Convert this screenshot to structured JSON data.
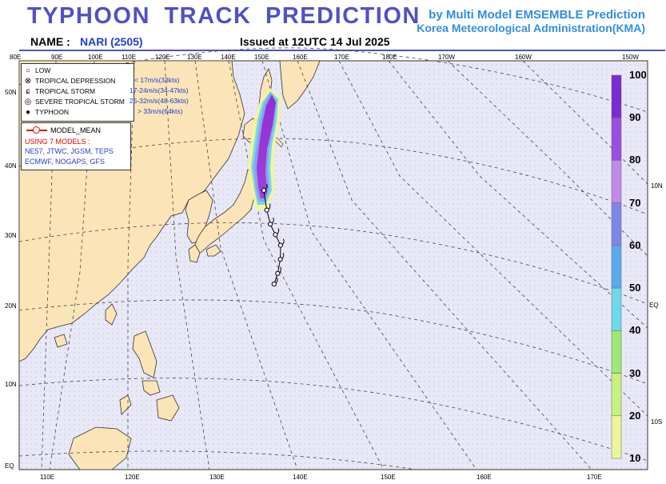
{
  "header": {
    "title": "TYPHOON  TRACK  PREDICTION",
    "byline1": "by Multi Model EMSEMBLE Prediction",
    "byline2": "Korea Meteorological Administration(KMA)",
    "name_label": "NAME :",
    "name_value": "NARI (2505)",
    "issued": "Issued at  12UTC 14 Jul 2025"
  },
  "legend": {
    "items": [
      {
        "label": "LOW",
        "range": "",
        "icon": "low-circle-icon"
      },
      {
        "label": "TROPICAL DEPRESSION",
        "range": "< 17m/s(33kts)",
        "icon": "depression-cross-icon"
      },
      {
        "label": "TROPICAL STORM",
        "range": "17-24m/s(34-47kts)",
        "icon": "storm-hook-icon"
      },
      {
        "label": "SEVERE TROPICAL STORM",
        "range": "25-32m/s(48-63kts)",
        "icon": "severe-storm-icon"
      },
      {
        "label": "TYPHOON",
        "range": "> 33m/s(64kts)",
        "icon": "typhoon-filled-icon"
      }
    ]
  },
  "models_box": {
    "mean_label": "MODEL_MEAN",
    "using": "USING 7 MODELS :",
    "line1": "NE57, JTWC, JGSM, TEPS",
    "line2": "ECMWF, NOGAPS, GFS"
  },
  "colorbar": {
    "labels": [
      "100",
      "90",
      "80",
      "70",
      "60",
      "50",
      "40",
      "30",
      "20",
      "10"
    ],
    "colors": [
      "#7b2bd0",
      "#9a4fe0",
      "#c08ae8",
      "#7f86e6",
      "#5aa9ee",
      "#6fd8ea",
      "#9ee877",
      "#c8f27e",
      "#ecf59a"
    ]
  },
  "axes": {
    "top": [
      "80E",
      "90E",
      "100E",
      "110E",
      "120E",
      "130E",
      "140E",
      "150E",
      "160E",
      "170E",
      "180E",
      "170W",
      "160W",
      "150W"
    ],
    "bottom": [
      "110E",
      "120E",
      "130E",
      "140E",
      "150E",
      "160E",
      "170E"
    ],
    "left": [
      "50N",
      "40N",
      "30N",
      "20N",
      "10N",
      "EQ"
    ],
    "right": [
      "10N",
      "EQ",
      "10S"
    ]
  },
  "colors": {
    "title": "#5050c8",
    "byline": "#2f8fe0",
    "ocean": "#e8e8f6",
    "land": "#fbe4b8",
    "track": "#000000"
  },
  "map_data": {
    "storm": "NARI (2505)",
    "track": [
      {
        "lat": 24.0,
        "lon": 136.8,
        "symbol": "tropical-storm"
      },
      {
        "lat": 25.5,
        "lon": 137.0,
        "symbol": "tropical-storm"
      },
      {
        "lat": 27.5,
        "lon": 137.1,
        "symbol": "tropical-storm"
      },
      {
        "lat": 29.5,
        "lon": 137.0,
        "symbol": "tropical-storm"
      },
      {
        "lat": 31.0,
        "lon": 136.5,
        "symbol": "tropical-storm"
      },
      {
        "lat": 32.5,
        "lon": 136.0,
        "symbol": "tropical-storm"
      },
      {
        "lat": 34.5,
        "lon": 135.6,
        "symbol": "tropical-storm"
      },
      {
        "lat": 37.3,
        "lon": 135.2,
        "symbol": "tropical-storm"
      }
    ]
  }
}
